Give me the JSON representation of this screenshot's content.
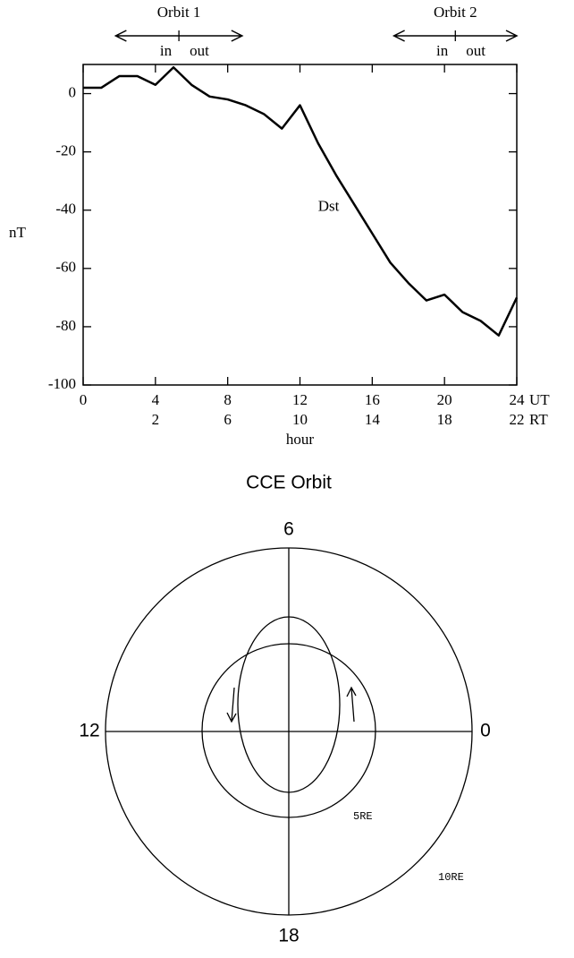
{
  "chart_data": {
    "type": "line",
    "x": [
      0,
      1,
      2,
      3,
      4,
      5,
      6,
      7,
      8,
      9,
      10,
      11,
      12,
      13,
      14,
      15,
      16,
      17,
      18,
      19,
      20,
      21,
      22,
      23,
      24
    ],
    "series": [
      {
        "name": "Dst",
        "color": "#000000",
        "values": [
          2,
          2,
          6,
          6,
          3,
          9,
          3,
          -1,
          -2,
          -4,
          -7,
          -12,
          -4,
          -17,
          -28,
          -38,
          -48,
          -58,
          -65,
          -71,
          -69,
          -75,
          -78,
          -83,
          -70
        ]
      }
    ],
    "series_label_at": {
      "x": 13,
      "y": -39
    },
    "xlim": [
      0,
      24
    ],
    "xticks": [
      0,
      4,
      8,
      12,
      16,
      20,
      24
    ],
    "x2lim": [
      -2,
      22
    ],
    "x2ticks": [
      2,
      6,
      10,
      14,
      18,
      22
    ],
    "x_unit": "UT",
    "x2_unit": "RT",
    "xlabel": "hour",
    "ylabel": "nT",
    "ylim": [
      -100,
      10
    ],
    "yticks": [
      -100,
      -80,
      -60,
      -40,
      -20,
      0
    ],
    "orbits": [
      {
        "label": "Orbit 1",
        "start": 1.8,
        "apogee": 5.3,
        "end": 8.8,
        "in": "in",
        "out": "out"
      },
      {
        "label": "Orbit 2",
        "start": 17.2,
        "apogee": 20.6,
        "end": 24,
        "in": "in",
        "out": "out"
      }
    ]
  },
  "orbit_diagram": {
    "title": "CCE Orbit",
    "top": "6",
    "left": "12",
    "right": "0",
    "bottom": "18",
    "inner_ring": "5RE",
    "outer_ring": "10RE"
  }
}
